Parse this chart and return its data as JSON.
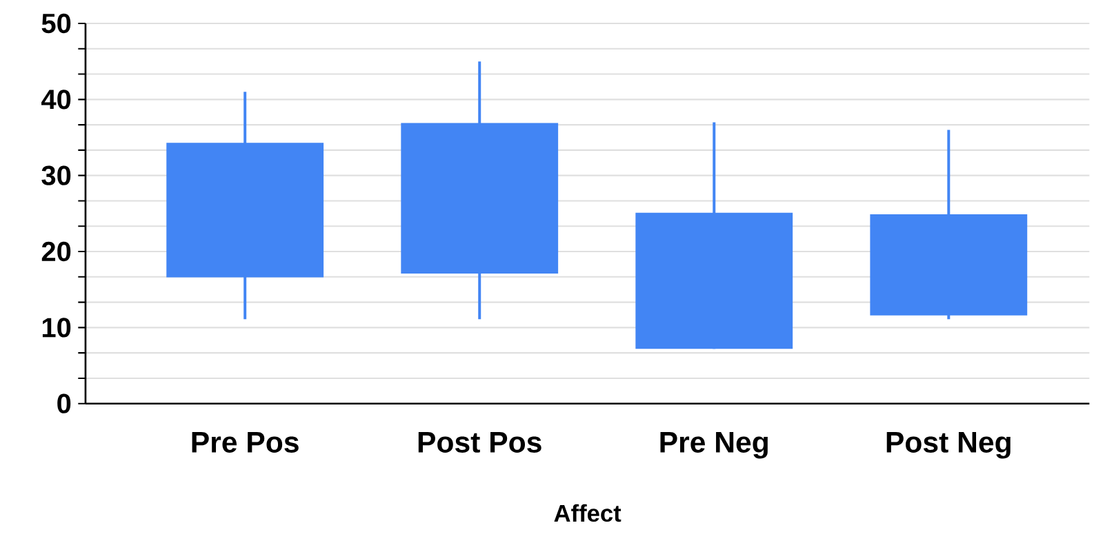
{
  "chart_data": {
    "type": "candlestick",
    "xlabel": "Affect",
    "categories": [
      "Pre Pos",
      "Post Pos",
      "Pre Neg",
      "Post Neg"
    ],
    "ohlc": [
      [
        16.6,
        41.0,
        11.1,
        34.3
      ],
      [
        17.1,
        45.0,
        11.1,
        36.9
      ],
      [
        7.2,
        37.0,
        7.2,
        25.1
      ],
      [
        11.6,
        36.0,
        11.1,
        24.9
      ]
    ],
    "color": "#4285f4",
    "ylim": [
      0,
      50
    ],
    "yticks": [
      0,
      {
        "value": 3.333,
        "label": null
      },
      {
        "value": 6.667,
        "label": null
      },
      10,
      {
        "value": 13.333,
        "label": null
      },
      {
        "value": 16.667,
        "label": null
      },
      20,
      {
        "value": 23.333,
        "label": null
      },
      {
        "value": 26.667,
        "label": null
      },
      30,
      {
        "value": 33.333,
        "label": null
      },
      {
        "value": 36.667,
        "label": null
      },
      40,
      {
        "value": 43.333,
        "label": null
      },
      {
        "value": 46.667,
        "label": null
      },
      50
    ],
    "grid": "y"
  }
}
